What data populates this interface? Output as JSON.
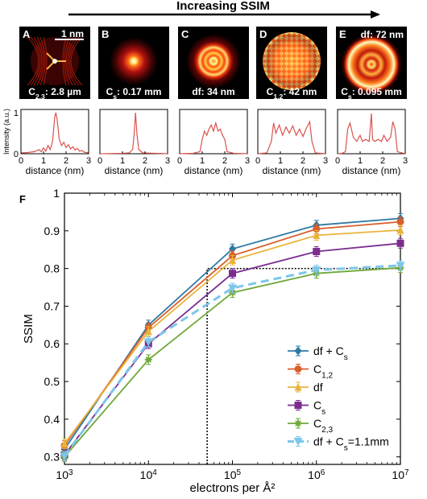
{
  "header": {
    "arrow_label": "Increasing SSIM"
  },
  "colors": {
    "panel_bg": "#000000",
    "profile_line": "#d9534f",
    "glow_core": "#ffffd0",
    "glow_red": "#ff3a10"
  },
  "panels": [
    {
      "letter": "A",
      "label": "C2,3: 2.8 µm",
      "label_parts": [
        "C",
        "2,3",
        ": 2.8 µm"
      ],
      "scale_bar": "1 nm",
      "kind": "caustic"
    },
    {
      "letter": "B",
      "label": "Cs: 0.17 mm",
      "label_parts": [
        "C",
        "s",
        ": 0.17 mm"
      ],
      "kind": "dot"
    },
    {
      "letter": "C",
      "label": "df: 34 nm",
      "label_parts": [
        "df: 34 nm",
        "",
        ""
      ],
      "kind": "rings"
    },
    {
      "letter": "D",
      "label": "C1,2: 42 nm",
      "label_parts": [
        "C",
        "1,2",
        ": 42 nm"
      ],
      "kind": "checker"
    },
    {
      "letter": "E",
      "label_top": "df: 72 nm",
      "label": "Cs: 0.095 mm",
      "label_parts": [
        "C",
        "s",
        ": 0.095 mm"
      ],
      "kind": "bigrings"
    }
  ],
  "profiles": {
    "ylabel": "Intensity (a.u.)",
    "xlabel": "distance (nm)",
    "xticks": [
      "0",
      "1",
      "2",
      "3"
    ],
    "yticks": [
      "0",
      "1"
    ],
    "xlim": [
      0,
      3
    ],
    "ylim": [
      0,
      1
    ],
    "series": [
      [
        [
          0,
          0.02
        ],
        [
          0.3,
          0.03
        ],
        [
          0.6,
          0.05
        ],
        [
          0.8,
          0.1
        ],
        [
          0.9,
          0.05
        ],
        [
          1.0,
          0.14
        ],
        [
          1.1,
          0.06
        ],
        [
          1.2,
          0.2
        ],
        [
          1.3,
          0.1
        ],
        [
          1.4,
          0.3
        ],
        [
          1.5,
          0.9
        ],
        [
          1.55,
          1.0
        ],
        [
          1.6,
          0.85
        ],
        [
          1.7,
          0.35
        ],
        [
          1.8,
          0.2
        ],
        [
          1.9,
          0.28
        ],
        [
          2.0,
          0.15
        ],
        [
          2.1,
          0.22
        ],
        [
          2.2,
          0.12
        ],
        [
          2.3,
          0.17
        ],
        [
          2.4,
          0.09
        ],
        [
          2.5,
          0.13
        ],
        [
          2.6,
          0.06
        ],
        [
          2.7,
          0.08
        ],
        [
          2.8,
          0.04
        ],
        [
          3.0,
          0.02
        ]
      ],
      [
        [
          0,
          0.0
        ],
        [
          1.0,
          0.01
        ],
        [
          1.3,
          0.02
        ],
        [
          1.45,
          0.1
        ],
        [
          1.52,
          0.5
        ],
        [
          1.58,
          1.0
        ],
        [
          1.64,
          0.5
        ],
        [
          1.72,
          0.1
        ],
        [
          1.9,
          0.02
        ],
        [
          3.0,
          0.0
        ]
      ],
      [
        [
          0,
          0.0
        ],
        [
          0.6,
          0.01
        ],
        [
          0.9,
          0.05
        ],
        [
          1.0,
          0.35
        ],
        [
          1.1,
          0.55
        ],
        [
          1.2,
          0.45
        ],
        [
          1.3,
          0.6
        ],
        [
          1.4,
          0.7
        ],
        [
          1.5,
          0.55
        ],
        [
          1.6,
          0.75
        ],
        [
          1.7,
          0.55
        ],
        [
          1.8,
          0.6
        ],
        [
          1.9,
          0.45
        ],
        [
          2.0,
          0.35
        ],
        [
          2.1,
          0.05
        ],
        [
          2.4,
          0.01
        ],
        [
          3.0,
          0.0
        ]
      ],
      [
        [
          0,
          0.0
        ],
        [
          0.4,
          0.02
        ],
        [
          0.6,
          0.3
        ],
        [
          0.7,
          0.75
        ],
        [
          0.8,
          0.5
        ],
        [
          0.95,
          0.7
        ],
        [
          1.1,
          0.45
        ],
        [
          1.25,
          0.65
        ],
        [
          1.4,
          0.5
        ],
        [
          1.55,
          0.68
        ],
        [
          1.7,
          0.45
        ],
        [
          1.85,
          0.6
        ],
        [
          2.0,
          0.42
        ],
        [
          2.15,
          0.62
        ],
        [
          2.3,
          0.78
        ],
        [
          2.4,
          0.3
        ],
        [
          2.55,
          0.02
        ],
        [
          3.0,
          0.0
        ]
      ],
      [
        [
          0,
          0.0
        ],
        [
          0.2,
          0.01
        ],
        [
          0.35,
          0.05
        ],
        [
          0.45,
          0.6
        ],
        [
          0.55,
          0.75
        ],
        [
          0.7,
          0.4
        ],
        [
          0.85,
          0.3
        ],
        [
          1.0,
          0.45
        ],
        [
          1.1,
          0.3
        ],
        [
          1.25,
          0.35
        ],
        [
          1.4,
          0.3
        ],
        [
          1.5,
          0.98
        ],
        [
          1.55,
          0.35
        ],
        [
          1.65,
          0.3
        ],
        [
          1.8,
          0.35
        ],
        [
          1.95,
          0.3
        ],
        [
          2.05,
          0.45
        ],
        [
          2.2,
          0.3
        ],
        [
          2.35,
          0.4
        ],
        [
          2.45,
          0.78
        ],
        [
          2.55,
          0.6
        ],
        [
          2.65,
          0.05
        ],
        [
          3.0,
          0.0
        ]
      ]
    ]
  },
  "chart_data": {
    "type": "line",
    "panel_letter": "F",
    "xlabel": "electrons per Å²",
    "ylabel": "SSIM",
    "x_scale": "log",
    "x": [
      1000,
      10000,
      100000,
      1000000,
      10000000
    ],
    "xticks": [
      {
        "base": "10",
        "exp": "3"
      },
      {
        "base": "10",
        "exp": "4"
      },
      {
        "base": "10",
        "exp": "5"
      },
      {
        "base": "10",
        "exp": "6"
      },
      {
        "base": "10",
        "exp": "7"
      }
    ],
    "ylim": [
      0.28,
      1.0
    ],
    "yticks": [
      "0.3",
      "0.4",
      "0.5",
      "0.6",
      "0.7",
      "0.8",
      "0.9",
      "1"
    ],
    "grid": false,
    "legend_position": "bottom-right",
    "series": [
      {
        "name": "df + Cs",
        "name_parts": [
          "df + C",
          "s",
          ""
        ],
        "color": "#2e7aa4",
        "marker": "diamond",
        "dash": "",
        "values": [
          0.32,
          0.65,
          0.852,
          0.915,
          0.933
        ]
      },
      {
        "name": "C1,2",
        "name_parts": [
          "C",
          "1,2",
          ""
        ],
        "color": "#d95f2b",
        "marker": "circle",
        "dash": "",
        "values": [
          0.33,
          0.643,
          0.834,
          0.905,
          0.924
        ]
      },
      {
        "name": "df",
        "name_parts": [
          "df",
          "",
          ""
        ],
        "color": "#e8b43c",
        "marker": "triangle",
        "dash": "",
        "values": [
          0.335,
          0.633,
          0.822,
          0.888,
          0.902
        ]
      },
      {
        "name": "Cs",
        "name_parts": [
          "C",
          "s",
          ""
        ],
        "color": "#7b2d8e",
        "marker": "square",
        "dash": "",
        "values": [
          0.305,
          0.6,
          0.787,
          0.845,
          0.867
        ]
      },
      {
        "name": "C2,3",
        "name_parts": [
          "C",
          "2,3",
          ""
        ],
        "color": "#6fa83a",
        "marker": "star",
        "dash": "",
        "values": [
          0.3,
          0.558,
          0.736,
          0.787,
          0.802
        ]
      },
      {
        "name": "df + Cs=1.1mm",
        "name_parts": [
          "df + C",
          "s",
          "=1.1mm"
        ],
        "color": "#7dc6ea",
        "marker": "triangle-down",
        "dash": "10,6",
        "values": [
          0.302,
          0.605,
          0.748,
          0.796,
          0.808
        ]
      }
    ],
    "annotation": {
      "type": "dotted-box",
      "x_from": 50000,
      "x_to": 10000000,
      "y_from": 0.28,
      "y_to": 0.8
    }
  }
}
